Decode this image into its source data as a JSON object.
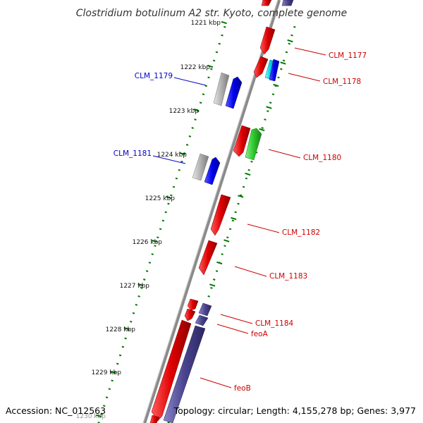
{
  "title": "Clostridium botulinum A2 str. Kyoto, complete genome",
  "footer": {
    "accession": "Accession: NC_012563",
    "summary": "Topology: circular; Length: 4,155,278 bp; Genes: 3,977"
  },
  "kbp_ticks": [
    "1221 kbp",
    "1222 kbp",
    "1223 kbp",
    "1224 kbp",
    "1225 kbp",
    "1226 kbp",
    "1227 kbp",
    "1228 kbp",
    "1229 kbp",
    "1230 kbp"
  ],
  "gene_labels": [
    {
      "text": "CLM_1177",
      "color": "#cc0000"
    },
    {
      "text": "CLM_1178",
      "color": "#cc0000"
    },
    {
      "text": "CLM_1179",
      "color": "#0000cc"
    },
    {
      "text": "CLM_1180",
      "color": "#cc0000"
    },
    {
      "text": "CLM_1181",
      "color": "#0000cc"
    },
    {
      "text": "CLM_1182",
      "color": "#cc0000"
    },
    {
      "text": "CLM_1183",
      "color": "#cc0000"
    },
    {
      "text": "CLM_1184",
      "color": "#cc0000"
    },
    {
      "text": "feoA",
      "color": "#cc0000"
    },
    {
      "text": "feoB",
      "color": "#cc0000"
    }
  ],
  "colors": {
    "red": "#e00000",
    "blue": "#0000ee",
    "gray": "#a8a8a8",
    "navy": "#4a4490",
    "green": "#2ec82e",
    "cyan": "#00d8e8",
    "tick_green": "#007700",
    "backbone": "#888888"
  }
}
